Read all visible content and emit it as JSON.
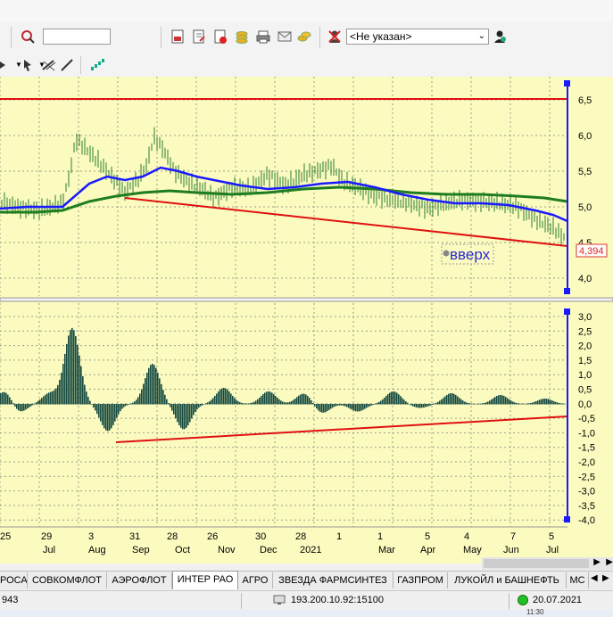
{
  "toolbar": {
    "search_value": "",
    "client_select": "<Не указан>"
  },
  "chart": {
    "label_box": "вверх",
    "price_label": "4,394",
    "price_axis": [
      "6,5",
      "6,0",
      "5,5",
      "5,0",
      "4,5",
      "4,0"
    ],
    "osc_axis": [
      "3,0",
      "2,5",
      "2,0",
      "1,5",
      "1,0",
      "0,5",
      "0,0",
      "-0,5",
      "-1,0",
      "-1,5",
      "-2,0",
      "-2,5",
      "-3,0",
      "-3,5",
      "-4,0"
    ],
    "x_days": [
      "25",
      "29",
      "3",
      "31",
      "28",
      "26",
      "30",
      "28",
      "1",
      "1",
      "5",
      "4",
      "7",
      "5"
    ],
    "x_months": [
      "Jul",
      "Aug",
      "Sep",
      "Oct",
      "Nov",
      "Dec",
      "2021",
      "Mar",
      "Apr",
      "May",
      "Jun",
      "Jul"
    ],
    "colors": {
      "bg": "#fbfbc0",
      "candles": "#2e7d32",
      "ma_fast": "#1a1aff",
      "ma_slow": "#1e7d1e",
      "trend": "#e01010",
      "hist": "#154a40"
    }
  },
  "tabs": [
    "РОСА",
    "СОВКОМФЛОТ",
    "АЭРОФЛОТ",
    "ИНТЕР РАО",
    "АГРО",
    "ЗВЕЗДА ФАРМСИНТЕЗ",
    "ГАЗПРОМ",
    "ЛУКОЙЛ и БАШНЕФТЬ",
    "МС"
  ],
  "active_tab": "ИНТЕР РАО",
  "status": {
    "left_value": "943",
    "server": "193.200.10.92:15100",
    "date": "20.07.2021",
    "time_partial": "11:30"
  }
}
